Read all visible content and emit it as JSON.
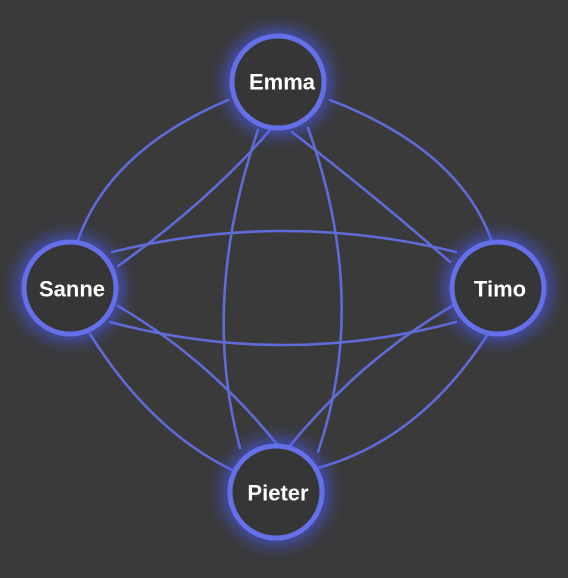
{
  "diagram": {
    "type": "complete-graph",
    "nodes": [
      {
        "id": "emma",
        "label": "Emma"
      },
      {
        "id": "sanne",
        "label": "Sanne"
      },
      {
        "id": "timo",
        "label": "Timo"
      },
      {
        "id": "pieter",
        "label": "Pieter"
      }
    ],
    "edges": [
      [
        "emma",
        "sanne"
      ],
      [
        "emma",
        "timo"
      ],
      [
        "emma",
        "pieter"
      ],
      [
        "sanne",
        "timo"
      ],
      [
        "sanne",
        "pieter"
      ],
      [
        "timo",
        "pieter"
      ]
    ]
  },
  "colors": {
    "background": "#3a3a3a",
    "edge": "#5f6bd6",
    "node_fill": "#363636",
    "node_ring": "#6470e8",
    "node_glow": "#4b5cff",
    "label": "#ffffff"
  }
}
